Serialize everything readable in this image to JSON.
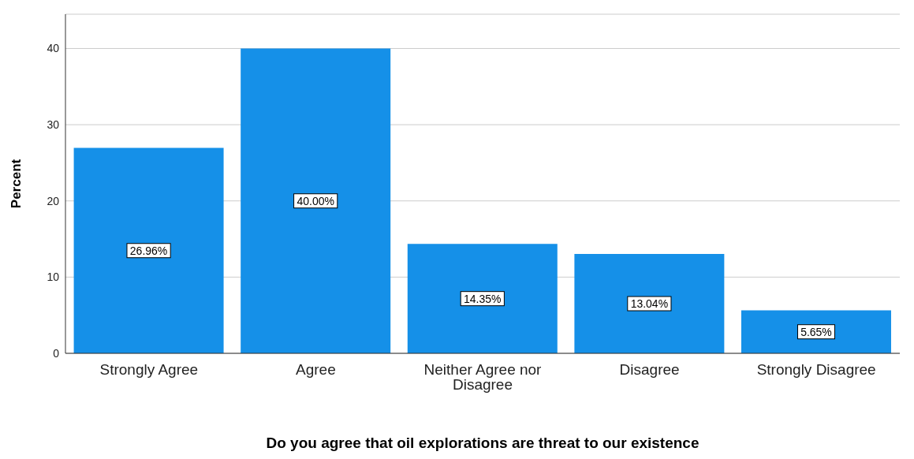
{
  "chart_data": {
    "type": "bar",
    "xlabel": "Do you agree that oil explorations are threat to our existence",
    "ylabel": "Percent",
    "categories": [
      "Strongly Agree",
      "Agree",
      "Neither Agree nor Disagree",
      "Disagree",
      "Strongly Disagree"
    ],
    "values": [
      26.96,
      40,
      14.35,
      13.04,
      5.65
    ],
    "value_labels": [
      "26.96%",
      "40.00%",
      "14.35%",
      "13.04%",
      "5.65%"
    ],
    "color": "#1590e8",
    "ylim": [
      0,
      44.5
    ],
    "yticks": [
      0,
      10,
      20,
      30,
      40
    ],
    "grid": "y"
  }
}
